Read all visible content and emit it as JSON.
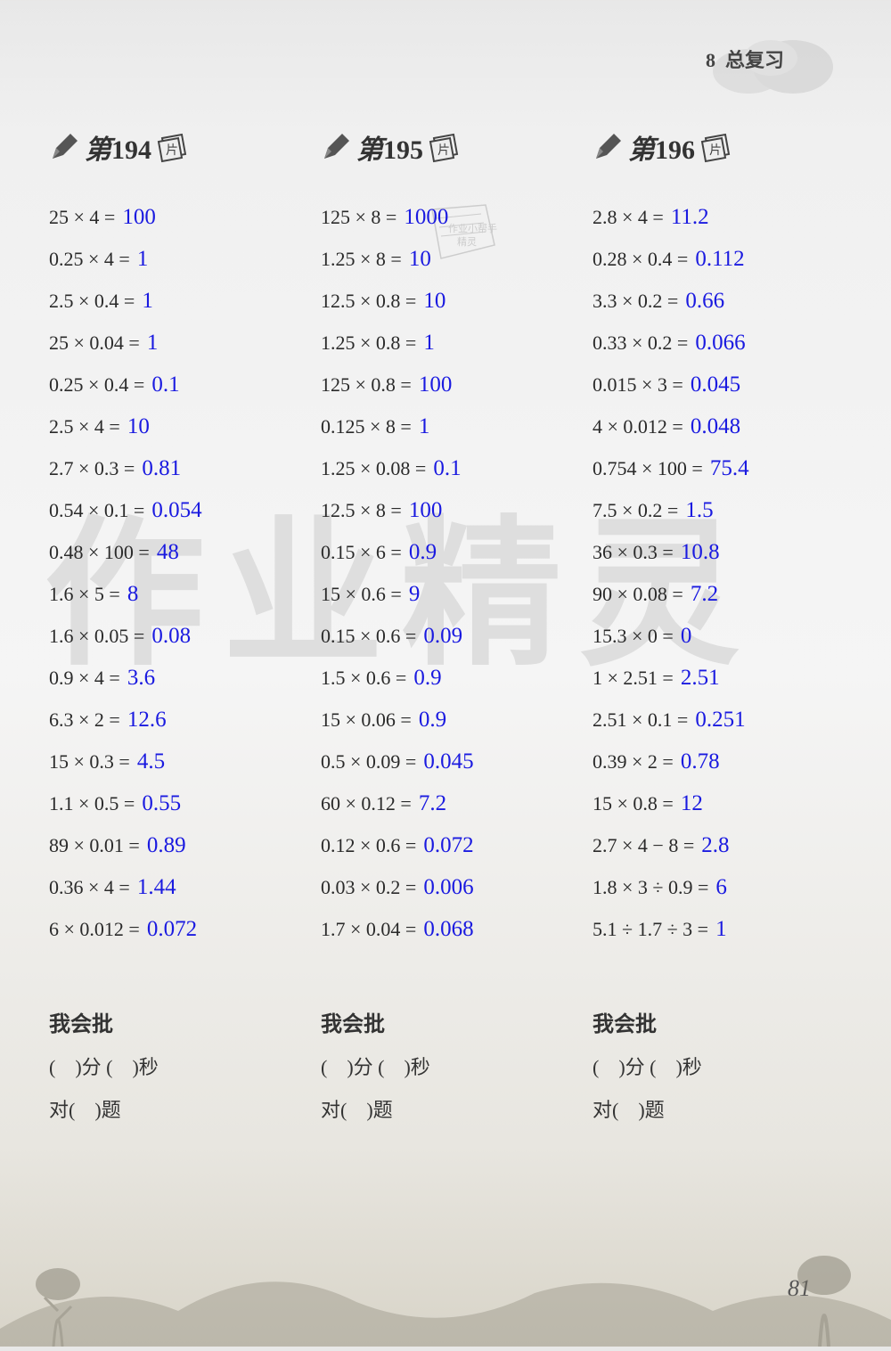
{
  "header": {
    "unit": "8",
    "title": "总复习"
  },
  "watermark": "作业精灵",
  "page_number": "81",
  "answer_color": "#1a1ae0",
  "expr_color": "#2a2a2a",
  "columns": [
    {
      "page_prefix": "第",
      "page_num": "194",
      "page_suffix": "片",
      "problems": [
        {
          "expr": "25 × 4 =",
          "answer": "100"
        },
        {
          "expr": "0.25 × 4 =",
          "answer": "1"
        },
        {
          "expr": "2.5 × 0.4 =",
          "answer": "1"
        },
        {
          "expr": "25 × 0.04 =",
          "answer": "1"
        },
        {
          "expr": "0.25 × 0.4 =",
          "answer": "0.1"
        },
        {
          "expr": "2.5 × 4 =",
          "answer": "10"
        },
        {
          "expr": "2.7 × 0.3 =",
          "answer": "0.81"
        },
        {
          "expr": "0.54 × 0.1 =",
          "answer": "0.054"
        },
        {
          "expr": "0.48 × 100 =",
          "answer": "48"
        },
        {
          "expr": "1.6 × 5 =",
          "answer": "8"
        },
        {
          "expr": "1.6 × 0.05 =",
          "answer": "0.08"
        },
        {
          "expr": "0.9 × 4 =",
          "answer": "3.6"
        },
        {
          "expr": "6.3 × 2 =",
          "answer": "12.6"
        },
        {
          "expr": "15 × 0.3 =",
          "answer": "4.5"
        },
        {
          "expr": "1.1 × 0.5 =",
          "answer": "0.55"
        },
        {
          "expr": "89 × 0.01 =",
          "answer": "0.89"
        },
        {
          "expr": "0.36 × 4 =",
          "answer": "1.44"
        },
        {
          "expr": "6 × 0.012 =",
          "answer": "0.072"
        }
      ],
      "grading": {
        "title": "我会批",
        "time": "(　)分 (　)秒",
        "correct": "对(　)题"
      }
    },
    {
      "page_prefix": "第",
      "page_num": "195",
      "page_suffix": "片",
      "problems": [
        {
          "expr": "125 × 8 =",
          "answer": "1000"
        },
        {
          "expr": "1.25 × 8 =",
          "answer": "10"
        },
        {
          "expr": "12.5 × 0.8 =",
          "answer": "10"
        },
        {
          "expr": "1.25 × 0.8 =",
          "answer": "1"
        },
        {
          "expr": "125 × 0.8 =",
          "answer": "100"
        },
        {
          "expr": "0.125 × 8 =",
          "answer": "1"
        },
        {
          "expr": "1.25 × 0.08 =",
          "answer": "0.1"
        },
        {
          "expr": "12.5 × 8 =",
          "answer": "100"
        },
        {
          "expr": "0.15 × 6 =",
          "answer": "0.9"
        },
        {
          "expr": "15 × 0.6 =",
          "answer": "9"
        },
        {
          "expr": "0.15 × 0.6 =",
          "answer": "0.09"
        },
        {
          "expr": "1.5 × 0.6 =",
          "answer": "0.9"
        },
        {
          "expr": "15 × 0.06 =",
          "answer": "0.9"
        },
        {
          "expr": "0.5 × 0.09 =",
          "answer": "0.045"
        },
        {
          "expr": "60 × 0.12 =",
          "answer": "7.2"
        },
        {
          "expr": "0.12 × 0.6 =",
          "answer": "0.072"
        },
        {
          "expr": "0.03 × 0.2 =",
          "answer": "0.006"
        },
        {
          "expr": "1.7 × 0.04 =",
          "answer": "0.068"
        }
      ],
      "grading": {
        "title": "我会批",
        "time": "(　)分 (　)秒",
        "correct": "对(　)题"
      }
    },
    {
      "page_prefix": "第",
      "page_num": "196",
      "page_suffix": "片",
      "problems": [
        {
          "expr": "2.8 × 4 =",
          "answer": "11.2"
        },
        {
          "expr": "0.28 × 0.4 =",
          "answer": "0.112"
        },
        {
          "expr": "3.3 × 0.2 =",
          "answer": "0.66"
        },
        {
          "expr": "0.33 × 0.2 =",
          "answer": "0.066"
        },
        {
          "expr": "0.015 × 3 =",
          "answer": "0.045"
        },
        {
          "expr": "4 × 0.012 =",
          "answer": "0.048"
        },
        {
          "expr": "0.754 × 100 =",
          "answer": "75.4"
        },
        {
          "expr": "7.5 × 0.2 =",
          "answer": "1.5"
        },
        {
          "expr": "36 × 0.3 =",
          "answer": "10.8"
        },
        {
          "expr": "90 × 0.08 =",
          "answer": "7.2"
        },
        {
          "expr": "15.3 × 0 =",
          "answer": "0"
        },
        {
          "expr": "1 × 2.51 =",
          "answer": "2.51"
        },
        {
          "expr": "2.51 × 0.1 =",
          "answer": "0.251"
        },
        {
          "expr": "0.39 × 2 =",
          "answer": "0.78"
        },
        {
          "expr": "15 × 0.8 =",
          "answer": "12"
        },
        {
          "expr": "2.7 × 4 − 8 =",
          "answer": "2.8"
        },
        {
          "expr": "1.8 × 3 ÷ 0.9 =",
          "answer": "6"
        },
        {
          "expr": "5.1 ÷ 1.7 ÷ 3 =",
          "answer": "1"
        }
      ],
      "grading": {
        "title": "我会批",
        "time": "(　)分 (　)秒",
        "correct": "对(　)题"
      }
    }
  ]
}
